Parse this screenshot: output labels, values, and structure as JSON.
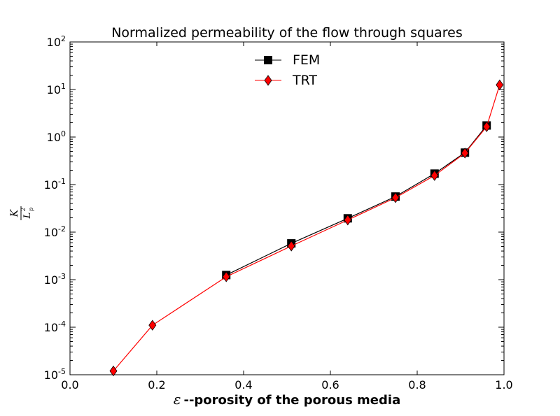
{
  "chart_data": {
    "type": "line",
    "title": "Normalized permeability of the flow through squares",
    "xlabel_symbol": "ε",
    "xlabel": "--porosity of the porous media",
    "ylabel": {
      "numerator": "K",
      "denominator": "L",
      "exponent": "2",
      "subscript": "p"
    },
    "xlim": [
      0.0,
      1.0
    ],
    "ylim": [
      1e-05,
      100
    ],
    "yscale": "log",
    "x_ticks": [
      "0.0",
      "0.2",
      "0.4",
      "0.6",
      "0.8",
      "1.0"
    ],
    "y_ticks": [
      {
        "base": "10",
        "exp": "-5"
      },
      {
        "base": "10",
        "exp": "-4"
      },
      {
        "base": "10",
        "exp": "-3"
      },
      {
        "base": "10",
        "exp": "-2"
      },
      {
        "base": "10",
        "exp": "-1"
      },
      {
        "base": "10",
        "exp": "0"
      },
      {
        "base": "10",
        "exp": "1"
      },
      {
        "base": "10",
        "exp": "2"
      }
    ],
    "legend_position": "upper center",
    "series": [
      {
        "name": "FEM",
        "color": "#000000",
        "marker": "square",
        "x": [
          0.36,
          0.51,
          0.64,
          0.75,
          0.84,
          0.91,
          0.96
        ],
        "y": [
          0.00125,
          0.0058,
          0.0195,
          0.056,
          0.17,
          0.47,
          1.75
        ]
      },
      {
        "name": "TRT",
        "color": "#ff0000",
        "marker": "diamond",
        "x": [
          0.1,
          0.19,
          0.36,
          0.51,
          0.64,
          0.75,
          0.84,
          0.91,
          0.96,
          0.99
        ],
        "y": [
          1.2e-05,
          0.00011,
          0.00115,
          0.0051,
          0.018,
          0.053,
          0.155,
          0.46,
          1.65,
          12.5
        ]
      }
    ]
  }
}
